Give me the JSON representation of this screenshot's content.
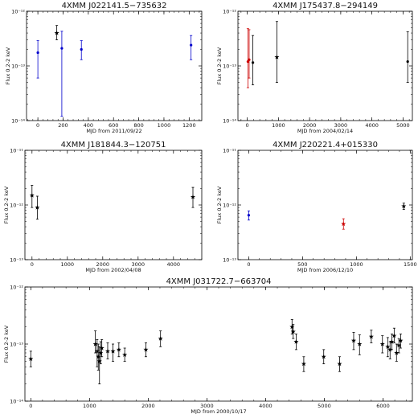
{
  "chart_data": [
    {
      "type": "scatter",
      "title": "4XMM J022141.5−735632",
      "xlabel": "MJD from 2011/09/22",
      "ylabel": "Flux 0.2-2 keV",
      "xlim": [
        -90,
        1300
      ],
      "ylim_log10": [
        -14,
        -12
      ],
      "yscale": "log",
      "xticks": [
        0,
        200,
        400,
        600,
        800,
        1000,
        1200
      ],
      "yticks": [
        {
          "v": -12,
          "label": "10⁻¹²"
        },
        {
          "v": -13,
          "label": "10⁻¹³"
        },
        {
          "v": -14,
          "label": "10⁻¹⁴"
        }
      ],
      "points": [
        {
          "x": 0,
          "y": 1.75e-13,
          "lo": 6e-14,
          "hi": 2.9e-13,
          "marker": "dot",
          "color": "#0000cc"
        },
        {
          "x": 150,
          "y": 4e-13,
          "lo": 3e-13,
          "hi": 5.5e-13,
          "marker": "star",
          "color": "#000000"
        },
        {
          "x": 190,
          "y": 2.1e-13,
          "lo": 1.2e-14,
          "hi": 4.3e-13,
          "marker": "dot",
          "color": "#0000cc"
        },
        {
          "x": 345,
          "y": 2e-13,
          "lo": 1.3e-13,
          "hi": 2.9e-13,
          "marker": "dot",
          "color": "#0000cc"
        },
        {
          "x": 1215,
          "y": 2.4e-13,
          "lo": 1.3e-13,
          "hi": 3.6e-13,
          "marker": "dot",
          "color": "#0000cc"
        }
      ]
    },
    {
      "type": "scatter",
      "title": "4XMM J175437.8−294149",
      "xlabel": "MJD from 2004/02/14",
      "ylabel": "Flux 0.2-2 keV",
      "xlim": [
        -300,
        5300
      ],
      "ylim_log10": [
        -14,
        -12
      ],
      "yscale": "log",
      "xticks": [
        0,
        1000,
        2000,
        3000,
        4000,
        5000
      ],
      "yticks": [
        {
          "v": -12,
          "label": "10⁻¹²"
        },
        {
          "v": -13,
          "label": "10⁻¹³"
        },
        {
          "v": -14,
          "label": "10⁻¹⁴"
        }
      ],
      "points": [
        {
          "x": 20,
          "y": 1.2e-13,
          "lo": 4e-14,
          "hi": 4.8e-13,
          "marker": "dot",
          "color": "#cc0000"
        },
        {
          "x": 60,
          "y": 1.3e-13,
          "lo": 6e-14,
          "hi": 4.6e-13,
          "marker": "dot",
          "color": "#cc0000"
        },
        {
          "x": 180,
          "y": 1.15e-13,
          "lo": 4.5e-14,
          "hi": 3.6e-13,
          "marker": "dot",
          "color": "#000000"
        },
        {
          "x": 950,
          "y": 1.45e-13,
          "lo": 5e-14,
          "hi": 6.5e-13,
          "marker": "star",
          "color": "#000000"
        },
        {
          "x": 5150,
          "y": 1.2e-13,
          "lo": 5e-14,
          "hi": 4.2e-13,
          "marker": "dot",
          "color": "#000000"
        }
      ]
    },
    {
      "type": "scatter",
      "title": "4XMM J181844.3−120751",
      "xlabel": "MJD from 2002/04/08",
      "ylabel": "Flux 0.2-2 keV",
      "xlim": [
        -200,
        4800
      ],
      "ylim_log10": [
        -13,
        -11
      ],
      "yscale": "log",
      "xticks": [
        0,
        1000,
        2000,
        3000,
        4000
      ],
      "yticks": [
        {
          "v": -11,
          "label": "10⁻¹¹"
        },
        {
          "v": -12,
          "label": "10⁻¹²"
        },
        {
          "v": -13,
          "label": "10⁻¹³"
        }
      ],
      "points": [
        {
          "x": 0,
          "y": 1.5e-12,
          "lo": 9e-13,
          "hi": 2.3e-12,
          "marker": "star",
          "color": "#000000"
        },
        {
          "x": 150,
          "y": 9e-13,
          "lo": 5.5e-13,
          "hi": 1.45e-12,
          "marker": "star",
          "color": "#000000"
        },
        {
          "x": 4550,
          "y": 1.4e-12,
          "lo": 9e-13,
          "hi": 2.1e-12,
          "marker": "star",
          "color": "#000000"
        }
      ]
    },
    {
      "type": "scatter",
      "title": "4XMM J220221.4+015330",
      "xlabel": "MJD from 2006/12/10",
      "ylabel": "Flux 0.2-2 keV",
      "xlim": [
        -100,
        1520
      ],
      "ylim_log10": [
        -13,
        -11
      ],
      "yscale": "log",
      "xticks": [
        0,
        500,
        1000,
        1500
      ],
      "yticks": [
        {
          "v": -11,
          "label": "10⁻¹¹"
        },
        {
          "v": -12,
          "label": "10⁻¹²"
        },
        {
          "v": -13,
          "label": "10⁻¹³"
        }
      ],
      "points": [
        {
          "x": 0,
          "y": 6.5e-13,
          "lo": 5.3e-13,
          "hi": 7.8e-13,
          "marker": "dot",
          "color": "#0000cc"
        },
        {
          "x": 880,
          "y": 4.5e-13,
          "lo": 3.6e-13,
          "hi": 5.6e-13,
          "marker": "star",
          "color": "#cc0000"
        },
        {
          "x": 1440,
          "y": 9.5e-13,
          "lo": 8.3e-13,
          "hi": 1.08e-12,
          "marker": "star",
          "color": "#000000"
        }
      ]
    },
    {
      "type": "scatter",
      "title": "4XMM J031722.7−663704",
      "xlabel": "MJD from 2000/10/17",
      "ylabel": "Flux 0.2-2 keV",
      "xlim": [
        -100,
        6500
      ],
      "ylim_log10": [
        -14,
        -12
      ],
      "yscale": "log",
      "xticks": [
        0,
        1000,
        2000,
        3000,
        4000,
        5000,
        6000
      ],
      "yticks": [
        {
          "v": -12,
          "label": "10⁻¹²"
        },
        {
          "v": -13,
          "label": "10⁻¹³"
        },
        {
          "v": -14,
          "label": "10⁻¹⁴"
        }
      ],
      "points": [
        {
          "x": 0,
          "y": 5.5e-14,
          "lo": 4e-14,
          "hi": 7.5e-14,
          "marker": "star",
          "color": "#000000"
        },
        {
          "x": 1100,
          "y": 1e-13,
          "lo": 7e-14,
          "hi": 1.7e-13,
          "marker": "star",
          "color": "#000000"
        },
        {
          "x": 1130,
          "y": 7.5e-14,
          "lo": 4e-14,
          "hi": 1.2e-13,
          "marker": "star",
          "color": "#000000"
        },
        {
          "x": 1150,
          "y": 6e-14,
          "lo": 3.5e-14,
          "hi": 1e-13,
          "marker": "star",
          "color": "#000000"
        },
        {
          "x": 1170,
          "y": 5e-14,
          "lo": 2e-14,
          "hi": 9e-14,
          "marker": "star",
          "color": "#000000"
        },
        {
          "x": 1190,
          "y": 7e-14,
          "lo": 4.5e-14,
          "hi": 1.1e-13,
          "marker": "star",
          "color": "#000000"
        },
        {
          "x": 1210,
          "y": 8.5e-14,
          "lo": 6e-14,
          "hi": 1.2e-13,
          "marker": "star",
          "color": "#000000"
        },
        {
          "x": 1310,
          "y": 7.5e-14,
          "lo": 5.5e-14,
          "hi": 1.05e-13,
          "marker": "star",
          "color": "#000000"
        },
        {
          "x": 1400,
          "y": 7.5e-14,
          "lo": 5e-14,
          "hi": 1e-13,
          "marker": "star",
          "color": "#000000"
        },
        {
          "x": 1500,
          "y": 8e-14,
          "lo": 6e-14,
          "hi": 1.05e-13,
          "marker": "star",
          "color": "#000000"
        },
        {
          "x": 1600,
          "y": 6.5e-14,
          "lo": 5e-14,
          "hi": 8.5e-14,
          "marker": "star",
          "color": "#000000"
        },
        {
          "x": 1960,
          "y": 8e-14,
          "lo": 6e-14,
          "hi": 1.05e-13,
          "marker": "star",
          "color": "#000000"
        },
        {
          "x": 2210,
          "y": 1.25e-13,
          "lo": 9e-14,
          "hi": 1.7e-13,
          "marker": "star",
          "color": "#000000"
        },
        {
          "x": 4450,
          "y": 2e-13,
          "lo": 1.5e-13,
          "hi": 2.7e-13,
          "marker": "star",
          "color": "#000000"
        },
        {
          "x": 4470,
          "y": 1.65e-13,
          "lo": 1.25e-13,
          "hi": 2.2e-13,
          "marker": "star",
          "color": "#000000"
        },
        {
          "x": 4520,
          "y": 1.1e-13,
          "lo": 8e-14,
          "hi": 1.5e-13,
          "marker": "star",
          "color": "#000000"
        },
        {
          "x": 4650,
          "y": 4.5e-14,
          "lo": 3.3e-14,
          "hi": 6e-14,
          "marker": "star",
          "color": "#000000"
        },
        {
          "x": 4990,
          "y": 6e-14,
          "lo": 4.5e-14,
          "hi": 8e-14,
          "marker": "star",
          "color": "#000000"
        },
        {
          "x": 5260,
          "y": 4.5e-14,
          "lo": 3.3e-14,
          "hi": 6e-14,
          "marker": "star",
          "color": "#000000"
        },
        {
          "x": 5500,
          "y": 1.15e-13,
          "lo": 8e-14,
          "hi": 1.6e-13,
          "marker": "star",
          "color": "#000000"
        },
        {
          "x": 5600,
          "y": 1e-13,
          "lo": 6.5e-14,
          "hi": 1.45e-13,
          "marker": "star",
          "color": "#000000"
        },
        {
          "x": 5800,
          "y": 1.35e-13,
          "lo": 1.05e-13,
          "hi": 1.75e-13,
          "marker": "star",
          "color": "#000000"
        },
        {
          "x": 5990,
          "y": 1e-13,
          "lo": 7e-14,
          "hi": 1.4e-13,
          "marker": "star",
          "color": "#000000"
        },
        {
          "x": 6080,
          "y": 9e-14,
          "lo": 6e-14,
          "hi": 1.3e-13,
          "marker": "star",
          "color": "#000000"
        },
        {
          "x": 6120,
          "y": 8e-14,
          "lo": 5.5e-14,
          "hi": 1.1e-13,
          "marker": "star",
          "color": "#000000"
        },
        {
          "x": 6150,
          "y": 1.1e-13,
          "lo": 8e-14,
          "hi": 1.5e-13,
          "marker": "star",
          "color": "#000000"
        },
        {
          "x": 6190,
          "y": 1.4e-13,
          "lo": 1.05e-13,
          "hi": 1.9e-13,
          "marker": "star",
          "color": "#000000"
        },
        {
          "x": 6230,
          "y": 7e-14,
          "lo": 5e-14,
          "hi": 1e-13,
          "marker": "star",
          "color": "#000000"
        },
        {
          "x": 6270,
          "y": 9.5e-14,
          "lo": 7e-14,
          "hi": 1.25e-13,
          "marker": "star",
          "color": "#000000"
        },
        {
          "x": 6300,
          "y": 1.15e-13,
          "lo": 8.5e-14,
          "hi": 1.5e-13,
          "marker": "star",
          "color": "#000000"
        }
      ]
    }
  ]
}
